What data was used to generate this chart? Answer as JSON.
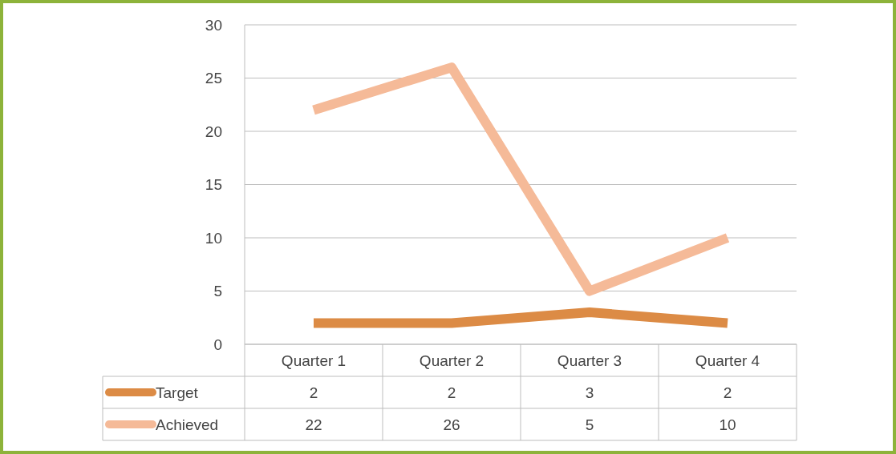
{
  "chart_data": {
    "type": "line",
    "categories": [
      "Quarter 1",
      "Quarter 2",
      "Quarter 3",
      "Quarter 4"
    ],
    "series": [
      {
        "name": "Target",
        "color": "#dc8b45",
        "values": [
          2,
          2,
          3,
          2
        ]
      },
      {
        "name": "Achieved",
        "color": "#f5ba98",
        "values": [
          22,
          26,
          5,
          10
        ]
      }
    ],
    "ylim": [
      0,
      30
    ],
    "yticks": [
      0,
      5,
      10,
      15,
      20,
      25,
      30
    ],
    "grid": "y",
    "legend": "bottom",
    "data_labels": true,
    "marker": "none",
    "line_style": "solid"
  }
}
